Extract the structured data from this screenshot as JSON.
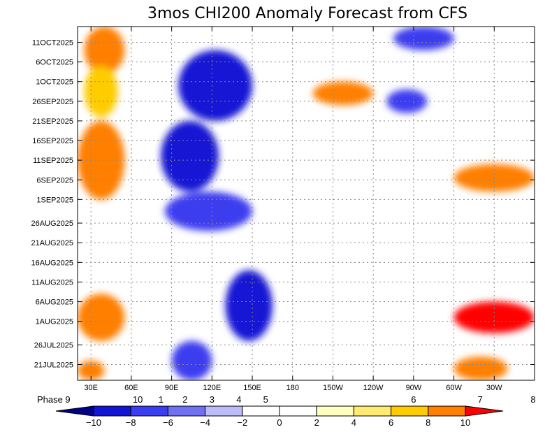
{
  "chart_data": {
    "type": "heatmap",
    "title": "3mos CHI200 Anomaly Forecast from CFS",
    "x_axis": {
      "tick_labels": [
        "30E",
        "60E",
        "90E",
        "120E",
        "150E",
        "180",
        "150W",
        "120W",
        "90W",
        "60W",
        "30W"
      ],
      "tick_lon_east": [
        30,
        60,
        90,
        120,
        150,
        180,
        210,
        240,
        270,
        300,
        330
      ],
      "range_lon_east": [
        20,
        360
      ]
    },
    "y_axis": {
      "tick_labels": [
        "21JUL2025",
        "26JUL2025",
        "1AUG2025",
        "6AUG2025",
        "11AUG2025",
        "16AUG2025",
        "21AUG2025",
        "26AUG2025",
        "1SEP2025",
        "6SEP2025",
        "11SEP2025",
        "16SEP2025",
        "21SEP2025",
        "26SEP2025",
        "1OCT2025",
        "6OCT2025",
        "11OCT2025"
      ],
      "tick_day_index": [
        4,
        9,
        15,
        20,
        25,
        30,
        35,
        40,
        46,
        51,
        56,
        61,
        66,
        71,
        76,
        81,
        86
      ],
      "range_day_index": [
        0,
        90
      ],
      "day_index_origin": "17JUL2025",
      "direction": "time increases upward"
    },
    "mjo_phases": {
      "label": "Phase",
      "items": [
        {
          "label": "9",
          "lon_east": 20
        },
        {
          "label": "10",
          "lon_east": 70
        },
        {
          "label": "1",
          "lon_east": 80
        },
        {
          "label": "2",
          "lon_east": 100
        },
        {
          "label": "3",
          "lon_east": 120
        },
        {
          "label": "4",
          "lon_east": 140
        },
        {
          "label": "5",
          "lon_east": 160
        },
        {
          "label": "6",
          "lon_east": 270
        },
        {
          "label": "7",
          "lon_east": 330
        },
        {
          "label": "8",
          "lon_east": 360
        }
      ]
    },
    "colorbar": {
      "ticks": [
        -10,
        -8,
        -6,
        -4,
        -2,
        0,
        2,
        4,
        6,
        8,
        10
      ],
      "colors": [
        "#00008b",
        "#1414d4",
        "#3c3cf0",
        "#7070f2",
        "#bcbcf7",
        "#ffffff",
        "#ffffff",
        "#ffffbf",
        "#ffeb70",
        "#ffcc00",
        "#ff7f00",
        "#ff0000"
      ]
    },
    "features": [
      {
        "lon_east": [
          25,
          55
        ],
        "day_index": [
          78,
          90
        ],
        "value": 9
      },
      {
        "lon_east": [
          20,
          55
        ],
        "day_index": [
          46,
          66
        ],
        "value": 9
      },
      {
        "lon_east": [
          25,
          50
        ],
        "day_index": [
          67,
          80
        ],
        "value": 7
      },
      {
        "lon_east": [
          20,
          55
        ],
        "day_index": [
          10,
          22
        ],
        "value": 8
      },
      {
        "lon_east": [
          20,
          40
        ],
        "day_index": [
          0,
          5
        ],
        "value": 8
      },
      {
        "lon_east": [
          82,
          125
        ],
        "day_index": [
          48,
          66
        ],
        "value": -10
      },
      {
        "lon_east": [
          95,
          150
        ],
        "day_index": [
          66,
          84
        ],
        "value": -10
      },
      {
        "lon_east": [
          85,
          150
        ],
        "day_index": [
          38,
          48
        ],
        "value": -8
      },
      {
        "lon_east": [
          130,
          165
        ],
        "day_index": [
          10,
          28
        ],
        "value": -10
      },
      {
        "lon_east": [
          90,
          120
        ],
        "day_index": [
          0,
          10
        ],
        "value": -8
      },
      {
        "lon_east": [
          195,
          240
        ],
        "day_index": [
          70,
          76
        ],
        "value": 9
      },
      {
        "lon_east": [
          300,
          360
        ],
        "day_index": [
          48,
          55
        ],
        "value": 9
      },
      {
        "lon_east": [
          300,
          360
        ],
        "day_index": [
          12,
          20
        ],
        "value": 10
      },
      {
        "lon_east": [
          300,
          340
        ],
        "day_index": [
          0,
          6
        ],
        "value": 8
      },
      {
        "lon_east": [
          250,
          280
        ],
        "day_index": [
          68,
          74
        ],
        "value": -8
      },
      {
        "lon_east": [
          255,
          300
        ],
        "day_index": [
          84,
          90
        ],
        "value": -7
      }
    ]
  }
}
